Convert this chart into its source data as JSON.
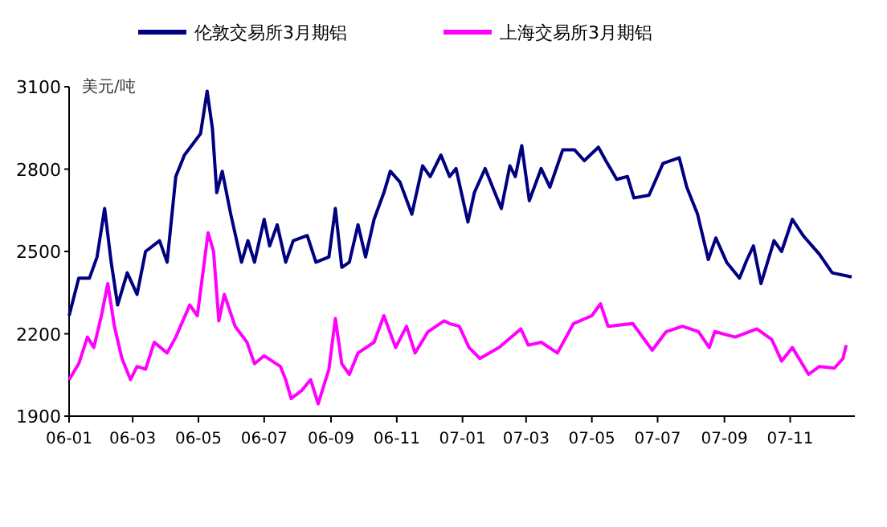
{
  "chart_data": {
    "type": "line",
    "ylabel": "美元/吨",
    "legend": "top",
    "grid": false,
    "marker": "none",
    "line_style": "solid",
    "xlim": [
      "2006-01-01",
      "2007-12-31"
    ],
    "ylim": [
      1900,
      3100
    ],
    "yticks": [
      1900,
      2200,
      2500,
      2800,
      3100
    ],
    "xticks": [
      {
        "value": "2006-01-01",
        "label": "06-01"
      },
      {
        "value": "2006-03-01",
        "label": "06-03"
      },
      {
        "value": "2006-05-01",
        "label": "06-05"
      },
      {
        "value": "2006-07-01",
        "label": "06-07"
      },
      {
        "value": "2006-09-01",
        "label": "06-09"
      },
      {
        "value": "2006-11-01",
        "label": "06-11"
      },
      {
        "value": "2007-01-01",
        "label": "07-01"
      },
      {
        "value": "2007-03-01",
        "label": "07-03"
      },
      {
        "value": "2007-05-01",
        "label": "07-05"
      },
      {
        "value": "2007-07-01",
        "label": "07-07"
      },
      {
        "value": "2007-09-01",
        "label": "07-09"
      },
      {
        "value": "2007-11-01",
        "label": "07-11"
      }
    ],
    "series": [
      {
        "name": "伦敦交易所3月期铝",
        "color": "#000080",
        "x": [
          "2006-01-01",
          "2006-01-10",
          "2006-01-20",
          "2006-01-27",
          "2006-02-03",
          "2006-02-09",
          "2006-02-15",
          "2006-02-24",
          "2006-03-05",
          "2006-03-13",
          "2006-03-26",
          "2006-04-02",
          "2006-04-10",
          "2006-04-18",
          "2006-05-03",
          "2006-05-09",
          "2006-05-14",
          "2006-05-18",
          "2006-05-23",
          "2006-05-31",
          "2006-06-10",
          "2006-06-16",
          "2006-06-22",
          "2006-07-01",
          "2006-07-06",
          "2006-07-13",
          "2006-07-21",
          "2006-07-28",
          "2006-08-10",
          "2006-08-18",
          "2006-08-30",
          "2006-09-05",
          "2006-09-11",
          "2006-09-18",
          "2006-09-26",
          "2006-10-03",
          "2006-10-11",
          "2006-10-20",
          "2006-10-26",
          "2006-11-04",
          "2006-11-15",
          "2006-11-25",
          "2006-12-02",
          "2006-12-12",
          "2006-12-20",
          "2006-12-26",
          "2007-01-06",
          "2007-01-12",
          "2007-01-22",
          "2007-01-30",
          "2007-02-06",
          "2007-02-14",
          "2007-02-19",
          "2007-02-25",
          "2007-03-04",
          "2007-03-15",
          "2007-03-23",
          "2007-04-04",
          "2007-04-15",
          "2007-04-24",
          "2007-05-07",
          "2007-05-14",
          "2007-05-24",
          "2007-06-03",
          "2007-06-09",
          "2007-06-23",
          "2007-07-06",
          "2007-07-21",
          "2007-07-28",
          "2007-08-07",
          "2007-08-17",
          "2007-08-24",
          "2007-09-03",
          "2007-09-15",
          "2007-09-22",
          "2007-09-28",
          "2007-10-05",
          "2007-10-17",
          "2007-10-24",
          "2007-11-03",
          "2007-11-13",
          "2007-11-28",
          "2007-12-10",
          "2007-12-28"
        ],
        "values": [
          2266,
          2403,
          2403,
          2480,
          2656,
          2461,
          2305,
          2422,
          2344,
          2500,
          2539,
          2461,
          2773,
          2851,
          2929,
          3084,
          2948,
          2714,
          2792,
          2636,
          2461,
          2539,
          2461,
          2617,
          2520,
          2597,
          2461,
          2539,
          2558,
          2461,
          2480,
          2656,
          2442,
          2461,
          2597,
          2480,
          2617,
          2714,
          2792,
          2753,
          2636,
          2812,
          2773,
          2851,
          2773,
          2802,
          2607,
          2714,
          2802,
          2724,
          2656,
          2812,
          2773,
          2886,
          2685,
          2802,
          2734,
          2870,
          2870,
          2831,
          2880,
          2831,
          2763,
          2773,
          2695,
          2705,
          2821,
          2841,
          2734,
          2636,
          2471,
          2549,
          2461,
          2403,
          2471,
          2520,
          2383,
          2539,
          2500,
          2617,
          2558,
          2490,
          2422,
          2407
        ]
      },
      {
        "name": "上海交易所3月期铝",
        "color": "#ff00ff",
        "x": [
          "2006-01-01",
          "2006-01-10",
          "2006-01-18",
          "2006-01-24",
          "2006-01-31",
          "2006-02-06",
          "2006-02-12",
          "2006-02-19",
          "2006-02-27",
          "2006-03-05",
          "2006-03-13",
          "2006-03-21",
          "2006-04-02",
          "2006-04-10",
          "2006-04-23",
          "2006-04-30",
          "2006-05-10",
          "2006-05-15",
          "2006-05-20",
          "2006-05-25",
          "2006-06-04",
          "2006-06-15",
          "2006-06-22",
          "2006-07-01",
          "2006-07-16",
          "2006-07-21",
          "2006-07-26",
          "2006-08-05",
          "2006-08-13",
          "2006-08-20",
          "2006-08-30",
          "2006-09-05",
          "2006-09-11",
          "2006-09-18",
          "2006-09-26",
          "2006-10-11",
          "2006-10-20",
          "2006-10-31",
          "2006-11-10",
          "2006-11-18",
          "2006-11-30",
          "2006-12-15",
          "2006-12-20",
          "2006-12-29",
          "2007-01-07",
          "2007-01-17",
          "2007-02-04",
          "2007-02-24",
          "2007-03-03",
          "2007-03-15",
          "2007-03-30",
          "2007-04-14",
          "2007-05-01",
          "2007-05-09",
          "2007-05-16",
          "2007-06-08",
          "2007-06-26",
          "2007-07-09",
          "2007-07-24",
          "2007-08-08",
          "2007-08-18",
          "2007-08-23",
          "2007-09-11",
          "2007-10-01",
          "2007-10-15",
          "2007-10-24",
          "2007-11-03",
          "2007-11-18",
          "2007-11-28",
          "2007-12-12",
          "2007-12-20",
          "2007-12-23"
        ],
        "values": [
          2033,
          2091,
          2188,
          2150,
          2266,
          2383,
          2227,
          2110,
          2033,
          2081,
          2071,
          2169,
          2130,
          2188,
          2305,
          2266,
          2568,
          2500,
          2247,
          2344,
          2227,
          2169,
          2091,
          2120,
          2081,
          2033,
          1964,
          1994,
          2033,
          1945,
          2071,
          2256,
          2091,
          2052,
          2130,
          2169,
          2266,
          2150,
          2227,
          2130,
          2208,
          2247,
          2237,
          2227,
          2150,
          2110,
          2150,
          2218,
          2159,
          2169,
          2130,
          2237,
          2266,
          2309,
          2227,
          2237,
          2140,
          2208,
          2227,
          2208,
          2150,
          2208,
          2188,
          2218,
          2179,
          2101,
          2150,
          2052,
          2081,
          2075,
          2110,
          2159
        ]
      }
    ]
  }
}
